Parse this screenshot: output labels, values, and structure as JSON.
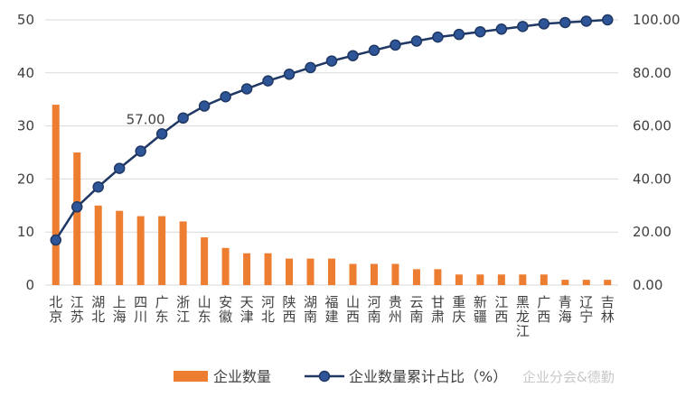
{
  "chart_data": {
    "type": "bar",
    "categories": [
      "北京",
      "江苏",
      "湖北",
      "上海",
      "四川",
      "广东",
      "浙江",
      "山东",
      "安徽",
      "天津",
      "河北",
      "陕西",
      "湖南",
      "福建",
      "山西",
      "河南",
      "贵州",
      "云南",
      "甘肃",
      "重庆",
      "新疆",
      "江西",
      "黑龙江",
      "广西",
      "青海",
      "辽宁",
      "吉林"
    ],
    "series": [
      {
        "name": "企业数量",
        "type": "bar",
        "axis": "left",
        "values": [
          34,
          25,
          15,
          14,
          13,
          13,
          12,
          9,
          7,
          6,
          6,
          5,
          5,
          5,
          4,
          4,
          4,
          3,
          3,
          2,
          2,
          2,
          2,
          2,
          1,
          1,
          1
        ]
      },
      {
        "name": "企业数量累计占比（%）",
        "type": "line",
        "axis": "right",
        "values": [
          17.0,
          29.5,
          37.0,
          44.0,
          50.5,
          57.0,
          63.0,
          67.5,
          71.0,
          74.0,
          77.0,
          79.5,
          82.0,
          84.5,
          86.5,
          88.5,
          90.5,
          92.0,
          93.5,
          94.5,
          95.5,
          96.5,
          97.5,
          98.5,
          99.0,
          99.5,
          100.0
        ]
      }
    ],
    "y_left_ticks": [
      "0",
      "10",
      "20",
      "30",
      "40",
      "50"
    ],
    "y_left_lim": [
      0,
      50
    ],
    "y_right_ticks": [
      "0.00",
      "20.00",
      "40.00",
      "60.00",
      "80.00",
      "100.00"
    ],
    "y_right_lim": [
      0,
      100
    ],
    "annotation": {
      "text": "57.00",
      "category": "广东"
    },
    "legend_position": "bottom",
    "grid": true,
    "colors": {
      "bar": "#ED7D31",
      "line": "#1F3864",
      "marker_fill": "#2E5597",
      "grid": "#D9D9D9",
      "text": "#404040"
    }
  },
  "watermark": "企业分会&德勤"
}
